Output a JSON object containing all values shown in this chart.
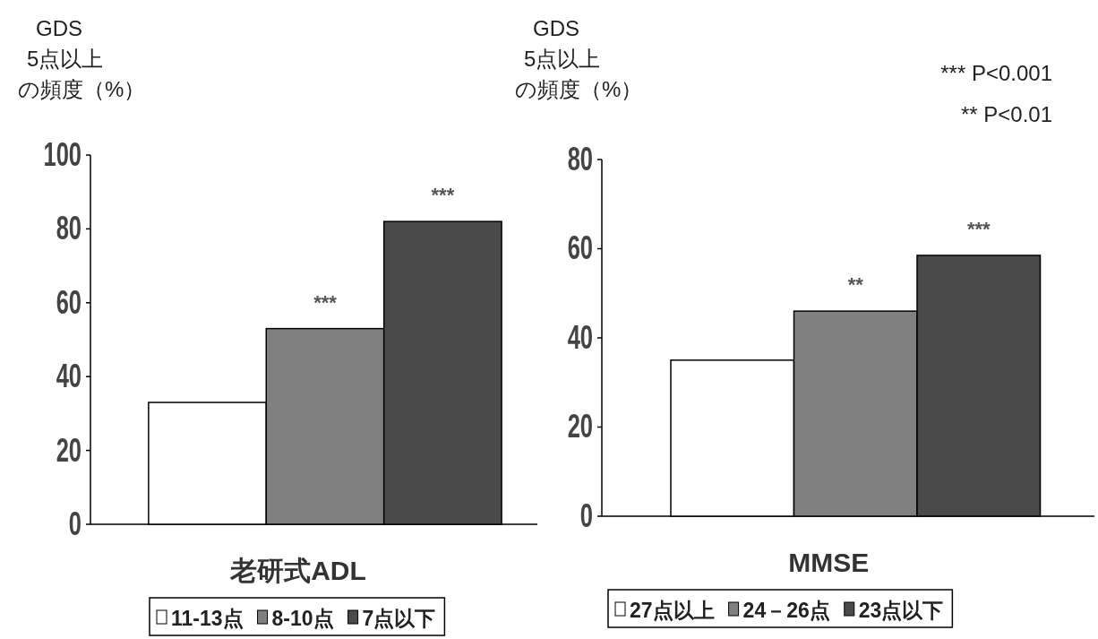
{
  "chart_data": [
    {
      "type": "bar",
      "ylabel": "GDS\n5点以上の頻度（%）",
      "xlabel": "老研式ADL",
      "categories": [
        null
      ],
      "ylim": [
        0,
        100
      ],
      "yticks": [
        0,
        20,
        40,
        60,
        80,
        100
      ],
      "legend": "bottom",
      "grid": false,
      "series": [
        {
          "name": "11-13点",
          "color": "#ffffff",
          "values": [
            33
          ]
        },
        {
          "name": "8-10点",
          "color": "#808080",
          "values": [
            53
          ],
          "value_labels": [
            "***"
          ]
        },
        {
          "name": "7点以下",
          "color": "#4a4a4a",
          "values": [
            82
          ],
          "value_labels": [
            "***"
          ]
        }
      ]
    },
    {
      "type": "bar",
      "ylabel": "GDS\n5点以上の頻度（%）",
      "xlabel": "MMSE",
      "categories": [
        null
      ],
      "ylim": [
        0,
        80
      ],
      "yticks": [
        0,
        20,
        40,
        60,
        80
      ],
      "legend": "bottom",
      "grid": false,
      "annotations": [
        "*** P<0.001",
        "** P<0.01"
      ],
      "series": [
        {
          "name": "27点以上",
          "color": "#ffffff",
          "values": [
            35
          ]
        },
        {
          "name": "24－26点",
          "color": "#808080",
          "values": [
            46
          ],
          "value_labels": [
            "**"
          ]
        },
        {
          "name": "23点以下",
          "color": "#4a4a4a",
          "values": [
            58.5
          ],
          "value_labels": [
            "***"
          ]
        }
      ]
    }
  ]
}
